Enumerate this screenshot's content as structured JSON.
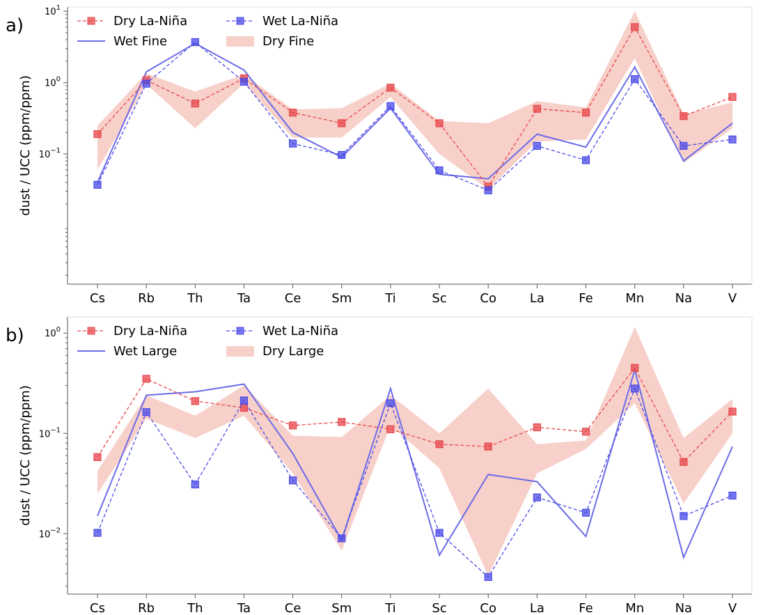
{
  "chart_data": [
    {
      "panel_label": "a)",
      "type": "line",
      "ylabel": "dust / UCC (ppm/ppm)",
      "yscale": "log",
      "ylim": [
        0.0015,
        11.5
      ],
      "yticks": [
        {
          "value": 0.1,
          "base": "10",
          "exp": "−1"
        },
        {
          "value": 1,
          "base": "10",
          "exp": "0"
        },
        {
          "value": 10,
          "base": "10",
          "exp": "1"
        }
      ],
      "categories": [
        "Cs",
        "Rb",
        "Th",
        "Ta",
        "Ce",
        "Sm",
        "Ti",
        "Sc",
        "Co",
        "La",
        "Fe",
        "Mn",
        "Na",
        "V"
      ],
      "legend": {
        "location": "top-left",
        "items": [
          {
            "label": "Dry La-Niña",
            "kind": "dashed-marker",
            "color": "#e8474b"
          },
          {
            "label": "Wet La-Niña",
            "kind": "dashed-marker",
            "color": "#4a4ae8"
          },
          {
            "label": "Wet Fine",
            "kind": "line",
            "color": "#6b6be8"
          },
          {
            "label": "Dry Fine",
            "kind": "band",
            "color": "#f5c4bc"
          }
        ]
      },
      "series": [
        {
          "name": "Dry La-Niña",
          "style": "dashed-marker",
          "color": "#e8474b",
          "values": [
            0.19,
            1.08,
            0.51,
            1.15,
            0.38,
            0.27,
            0.85,
            0.27,
            0.035,
            0.43,
            0.38,
            6.0,
            0.34,
            0.63
          ]
        },
        {
          "name": "Wet La-Niña",
          "style": "dashed-marker",
          "color": "#4a4ae8",
          "values": [
            0.037,
            0.97,
            3.7,
            1.03,
            0.14,
            0.097,
            0.47,
            0.059,
            0.031,
            0.13,
            0.082,
            1.12,
            0.13,
            0.16
          ]
        },
        {
          "name": "Wet Fine",
          "style": "line",
          "color": "#6b6be8",
          "values": [
            0.04,
            1.42,
            3.55,
            1.5,
            0.2,
            0.09,
            0.44,
            0.052,
            0.045,
            0.19,
            0.125,
            1.65,
            0.08,
            0.27
          ]
        },
        {
          "name": "Dry Fine",
          "style": "band",
          "color": "#f5c4bc",
          "lower": [
            0.06,
            0.95,
            0.23,
            0.98,
            0.17,
            0.17,
            0.63,
            0.1,
            0.032,
            0.15,
            0.16,
            2.2,
            0.075,
            0.23
          ],
          "upper": [
            0.25,
            1.35,
            0.75,
            1.3,
            0.42,
            0.44,
            0.97,
            0.29,
            0.27,
            0.55,
            0.45,
            10.0,
            0.36,
            0.53
          ]
        }
      ]
    },
    {
      "panel_label": "b)",
      "type": "line",
      "ylabel": "dust / UCC (ppm/ppm)",
      "yscale": "log",
      "ylim": [
        0.0025,
        1.45
      ],
      "yticks": [
        {
          "value": 0.01,
          "base": "10",
          "exp": "−2"
        },
        {
          "value": 0.1,
          "base": "10",
          "exp": "−1"
        },
        {
          "value": 1,
          "base": "10",
          "exp": "0"
        }
      ],
      "categories": [
        "Cs",
        "Rb",
        "Th",
        "Ta",
        "Ce",
        "Sm",
        "Ti",
        "Sc",
        "Co",
        "La",
        "Fe",
        "Mn",
        "Na",
        "V"
      ],
      "legend": {
        "location": "top-left",
        "items": [
          {
            "label": "Dry La-Niña",
            "kind": "dashed-marker",
            "color": "#e8474b"
          },
          {
            "label": "Wet La-Niña",
            "kind": "dashed-marker",
            "color": "#4a4ae8"
          },
          {
            "label": "Wet Large",
            "kind": "line",
            "color": "#6b6be8"
          },
          {
            "label": "Dry Large",
            "kind": "band",
            "color": "#f5c4bc"
          }
        ]
      },
      "series": [
        {
          "name": "Dry La-Niña",
          "style": "dashed-marker",
          "color": "#e8474b",
          "values": [
            0.058,
            0.35,
            0.21,
            0.18,
            0.12,
            0.13,
            0.11,
            0.078,
            0.074,
            0.115,
            0.104,
            0.45,
            0.052,
            0.165
          ]
        },
        {
          "name": "Wet La-Niña",
          "style": "dashed-marker",
          "color": "#4a4ae8",
          "values": [
            0.0102,
            0.163,
            0.031,
            0.213,
            0.034,
            0.009,
            0.2,
            0.0102,
            0.0037,
            0.023,
            0.0162,
            0.28,
            0.015,
            0.024
          ]
        },
        {
          "name": "Wet Large",
          "style": "line",
          "color": "#6b6be8",
          "values": [
            0.015,
            0.24,
            0.26,
            0.31,
            0.063,
            0.0086,
            0.28,
            0.0061,
            0.039,
            0.033,
            0.0094,
            0.43,
            0.0058,
            0.074
          ]
        },
        {
          "name": "Dry Large",
          "style": "band",
          "color": "#f5c4bc",
          "lower": [
            0.025,
            0.14,
            0.09,
            0.15,
            0.04,
            0.0068,
            0.12,
            0.045,
            0.0038,
            0.04,
            0.07,
            0.2,
            0.02,
            0.1
          ]
        },
        {
          "name": "Dry Large upper",
          "style": "band-upper",
          "color": "#f5c4bc",
          "upper": [
            0.042,
            0.24,
            0.15,
            0.3,
            0.095,
            0.092,
            0.24,
            0.1,
            0.28,
            0.078,
            0.085,
            1.15,
            0.09,
            0.22
          ]
        }
      ]
    }
  ]
}
